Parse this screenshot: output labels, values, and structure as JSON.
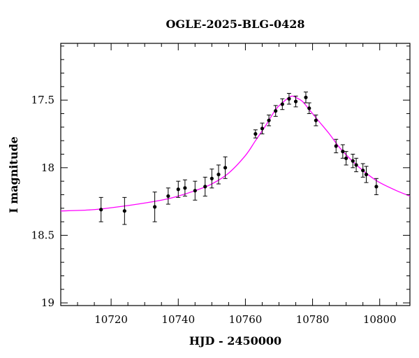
{
  "chart_data": {
    "type": "scatter",
    "title": "OGLE-2025-BLG-0428",
    "xlabel": "HJD - 2450000",
    "ylabel": "I magnitude",
    "xlim": [
      10705,
      10809
    ],
    "ylim": [
      19.02,
      17.08
    ],
    "y_inverted": true,
    "x_ticks": [
      10720,
      10740,
      10760,
      10780,
      10800
    ],
    "x_tick_labels": [
      "10720",
      "10740",
      "10760",
      "10780",
      "10800"
    ],
    "y_ticks": [
      17.5,
      18,
      18.5,
      19
    ],
    "y_tick_labels": [
      "17.5",
      "18",
      "18.5",
      "19"
    ],
    "grid": false,
    "legend": "none",
    "colors": {
      "points": "#000000",
      "model": "#ff00ff",
      "axes": "#000000"
    },
    "series": [
      {
        "kind": "points-with-errorbars",
        "x": [
          10717,
          10724,
          10733,
          10737,
          10740,
          10742,
          10745,
          10748,
          10750,
          10752,
          10754,
          10763,
          10765,
          10767,
          10769,
          10771,
          10773,
          10775,
          10778,
          10779,
          10781,
          10787,
          10789,
          10790,
          10792,
          10793,
          10795,
          10796,
          10799
        ],
        "y": [
          18.31,
          18.32,
          18.29,
          18.21,
          18.16,
          18.15,
          18.17,
          18.14,
          18.08,
          18.05,
          18.0,
          17.75,
          17.71,
          17.65,
          17.58,
          17.53,
          17.49,
          17.51,
          17.48,
          17.56,
          17.65,
          17.84,
          17.88,
          17.93,
          17.95,
          17.98,
          18.02,
          18.05,
          18.14
        ],
        "err": [
          0.09,
          0.1,
          0.11,
          0.06,
          0.06,
          0.06,
          0.07,
          0.07,
          0.07,
          0.07,
          0.08,
          0.03,
          0.04,
          0.04,
          0.04,
          0.04,
          0.04,
          0.04,
          0.04,
          0.04,
          0.04,
          0.05,
          0.05,
          0.05,
          0.05,
          0.05,
          0.05,
          0.06,
          0.06
        ]
      },
      {
        "kind": "model-curve",
        "baseline": 18.33,
        "peak_mag": 17.47,
        "peak_time": 10774,
        "x": [
          10705,
          10715,
          10725,
          10735,
          10740,
          10745,
          10750,
          10755,
          10760,
          10763,
          10766,
          10769,
          10771,
          10773,
          10774,
          10775,
          10777,
          10779,
          10782,
          10785,
          10788,
          10791,
          10794,
          10797,
          10800,
          10805,
          10809
        ],
        "y": [
          18.32,
          18.31,
          18.28,
          18.24,
          18.21,
          18.17,
          18.12,
          18.04,
          17.91,
          17.8,
          17.69,
          17.57,
          17.52,
          17.48,
          17.47,
          17.48,
          17.51,
          17.57,
          17.66,
          17.75,
          17.85,
          17.93,
          18.0,
          18.06,
          18.11,
          18.17,
          18.21
        ]
      }
    ]
  }
}
